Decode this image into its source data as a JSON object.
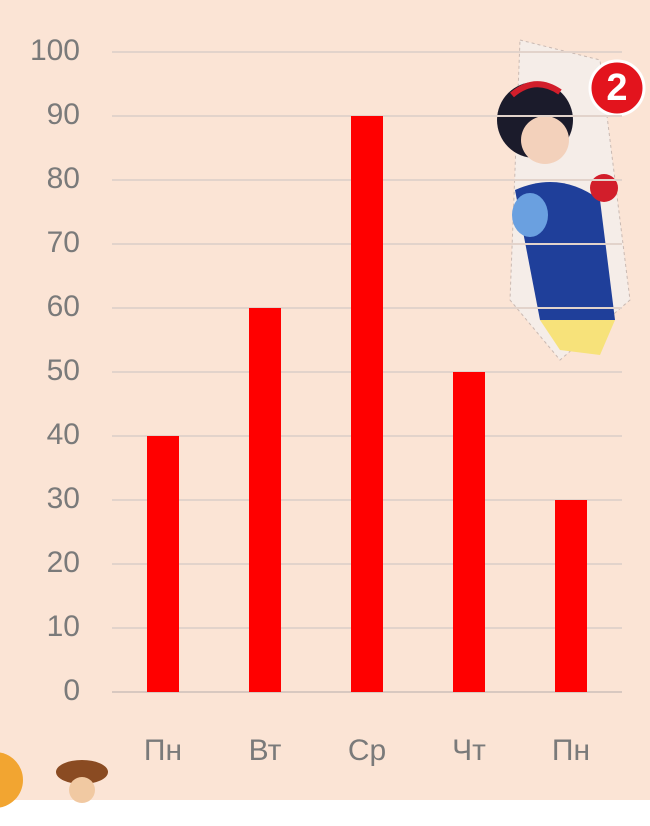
{
  "chart_data": {
    "type": "bar",
    "categories": [
      "Пн",
      "Вт",
      "Ср",
      "Чт",
      "Пн"
    ],
    "values": [
      40,
      60,
      90,
      50,
      30
    ],
    "color": "#ff0000",
    "ylim": [
      0,
      100
    ],
    "yticks": [
      0,
      10,
      20,
      30,
      40,
      50,
      60,
      70,
      80,
      90,
      100
    ],
    "grid": true,
    "annotation": "2"
  }
}
